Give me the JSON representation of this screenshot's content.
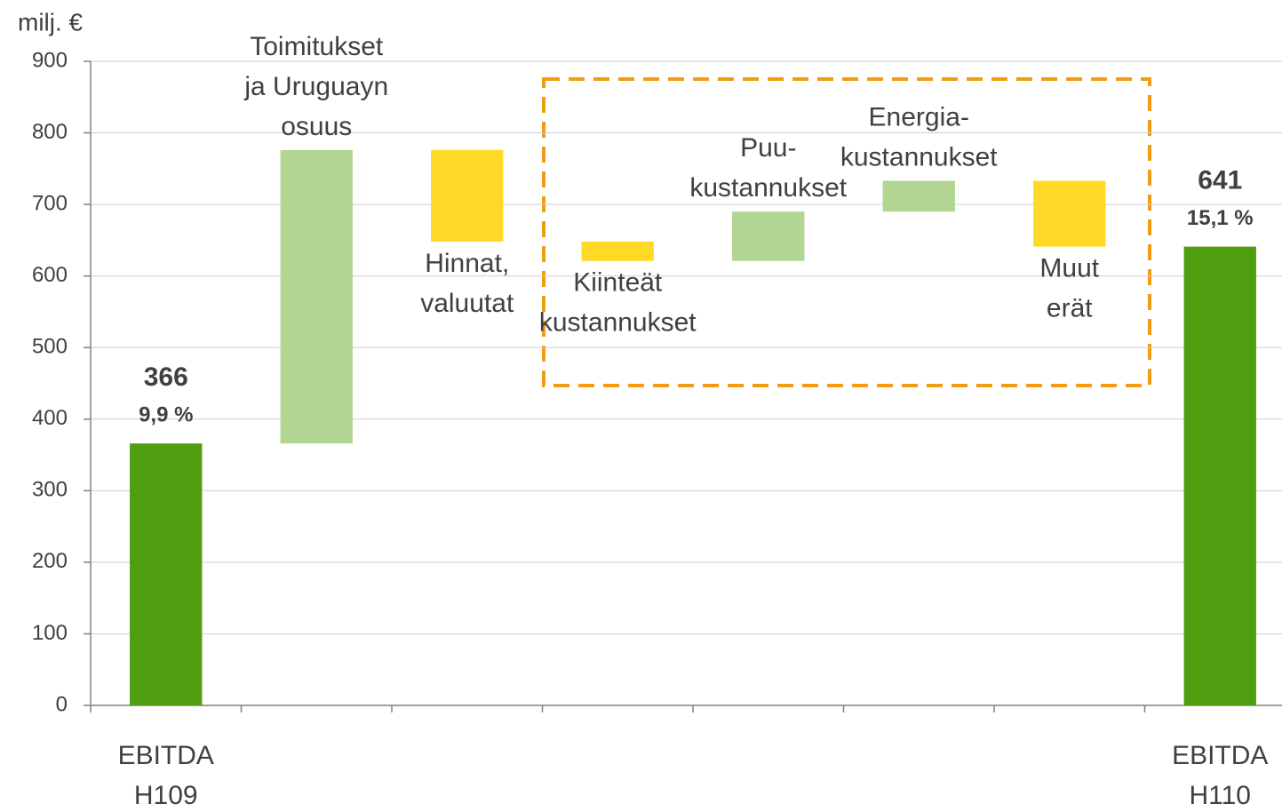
{
  "chart_data": {
    "type": "waterfall",
    "y_label": "milj. €",
    "categories": [
      [
        "EBITDA",
        "H109"
      ],
      [
        "Toimitukset",
        "ja Uruguayn",
        "osuus"
      ],
      [
        "Hinnat,",
        "valuutat"
      ],
      [
        "Kiinteät",
        "kustannukset"
      ],
      [
        "Puu-",
        "kustannukset"
      ],
      [
        "Energia-",
        "kustannukset"
      ],
      [
        "Muut",
        "erät"
      ],
      [
        "EBITDA",
        "H110"
      ]
    ],
    "values": [
      366,
      410,
      -128,
      -27,
      69,
      43,
      -92,
      641
    ],
    "measure": [
      "absolute",
      "relative",
      "relative",
      "relative",
      "relative",
      "relative",
      "relative",
      "absolute"
    ],
    "margins": [
      9.9,
      null,
      null,
      null,
      null,
      null,
      null,
      15.1
    ],
    "margin_labels": [
      "9,9 %",
      null,
      null,
      null,
      null,
      null,
      null,
      "15,1 %"
    ],
    "colors": {
      "absolute": "#4f9e0f",
      "increase": "#b2d591",
      "decrease": "#ffd926"
    },
    "ylim": [
      0,
      900
    ],
    "yticks": [
      0,
      100,
      200,
      300,
      400,
      500,
      600,
      700,
      800,
      900
    ],
    "grid": true
  }
}
